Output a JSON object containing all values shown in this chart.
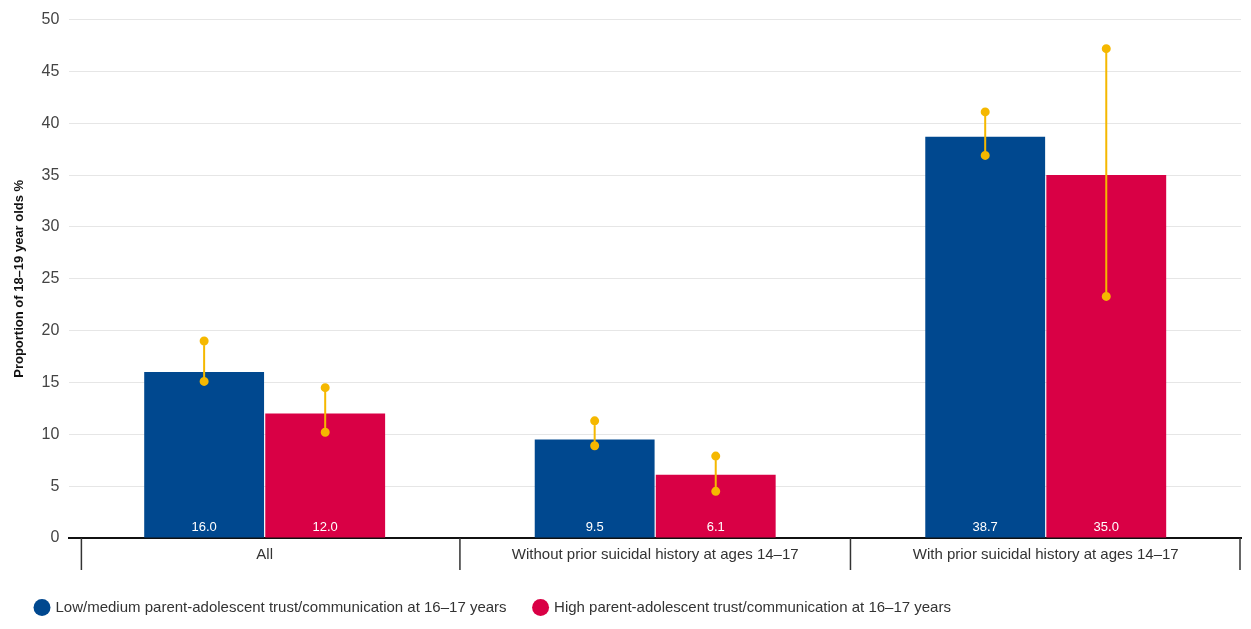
{
  "chart_data": {
    "type": "bar",
    "ylabel": "Proportion of 18–19 year olds %",
    "categories": [
      "All",
      "Without prior suicidal history at ages 14–17",
      "With prior suicidal history at ages 14–17"
    ],
    "series": [
      {
        "name": "Low/medium parent-adolescent trust/communication at 16–17 years",
        "color": "#00488f",
        "values": [
          16.0,
          9.5,
          38.7
        ],
        "value_labels": [
          "16.0",
          "9.5",
          "38.7"
        ],
        "errors": [
          [
            15.1,
            19.0
          ],
          [
            8.9,
            11.3
          ],
          [
            36.9,
            41.1
          ]
        ]
      },
      {
        "name": "High parent-adolescent trust/communication at 16–17 years",
        "color": "#d90045",
        "values": [
          12.0,
          6.1,
          35.0
        ],
        "value_labels": [
          "12.0",
          "6.1",
          "35.0"
        ],
        "errors": [
          [
            10.2,
            14.5
          ],
          [
            4.5,
            7.9
          ],
          [
            23.3,
            47.2
          ]
        ]
      }
    ],
    "ylim": [
      0,
      50
    ],
    "yticks": [
      0,
      5,
      10,
      15,
      20,
      25,
      30,
      35,
      40,
      45,
      50
    ],
    "grid": "y",
    "legend": "bottom left"
  }
}
